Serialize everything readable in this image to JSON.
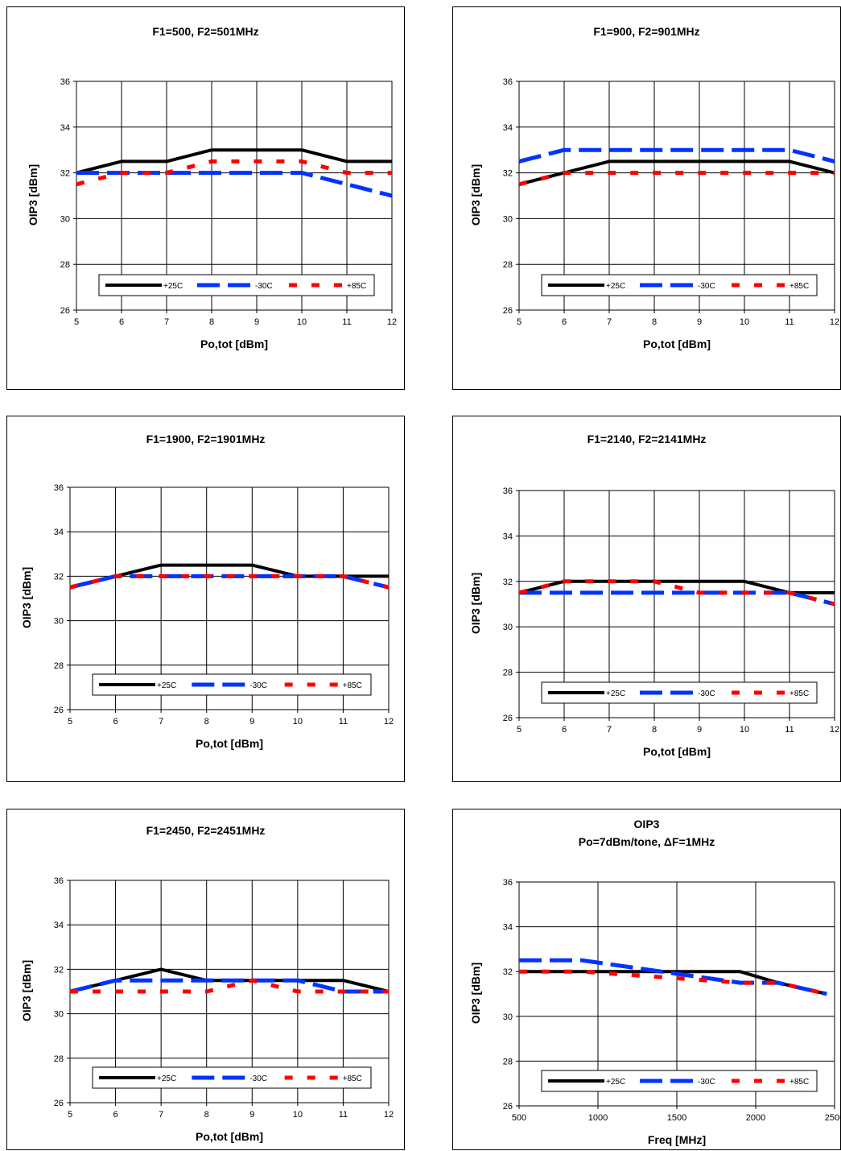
{
  "colors": {
    "plus25": "#000000",
    "minus30": "#0033ff",
    "plus85": "#ff0000",
    "grid": "#000000",
    "plot_bg": "#ffffff"
  },
  "chart_data": [
    {
      "type": "line",
      "title": "F1=500, F2=501MHz",
      "xlabel": "Po,tot [dBm]",
      "ylabel": "OIP3 [dBm]",
      "xlim": [
        5,
        12
      ],
      "ylim": [
        26,
        36
      ],
      "xticks": [
        5,
        6,
        7,
        8,
        9,
        10,
        11,
        12
      ],
      "yticks": [
        26,
        28,
        30,
        32,
        34,
        36
      ],
      "grid": true,
      "legend": "bottom",
      "series": [
        {
          "name": "+25C",
          "x": [
            5,
            6,
            7,
            8,
            9,
            10,
            11,
            12
          ],
          "y": [
            32,
            32.5,
            32.5,
            33,
            33,
            33,
            32.5,
            32.5
          ]
        },
        {
          "name": "-30C",
          "x": [
            5,
            6,
            7,
            8,
            9,
            10,
            11,
            12
          ],
          "y": [
            32,
            32,
            32,
            32,
            32,
            32,
            31.5,
            31
          ]
        },
        {
          "name": "+85C",
          "x": [
            5,
            6,
            7,
            8,
            9,
            10,
            11,
            12
          ],
          "y": [
            31.5,
            32,
            32,
            32.5,
            32.5,
            32.5,
            32,
            32
          ]
        }
      ]
    },
    {
      "type": "line",
      "title": "F1=900, F2=901MHz",
      "xlabel": "Po,tot [dBm]",
      "ylabel": "OIP3 [dBm]",
      "xlim": [
        5,
        12
      ],
      "ylim": [
        26,
        36
      ],
      "xticks": [
        5,
        6,
        7,
        8,
        9,
        10,
        11,
        12
      ],
      "yticks": [
        26,
        28,
        30,
        32,
        34,
        36
      ],
      "grid": true,
      "legend": "bottom",
      "series": [
        {
          "name": "+25C",
          "x": [
            5,
            6,
            7,
            8,
            9,
            10,
            11,
            12
          ],
          "y": [
            31.5,
            32,
            32.5,
            32.5,
            32.5,
            32.5,
            32.5,
            32
          ]
        },
        {
          "name": "-30C",
          "x": [
            5,
            6,
            7,
            8,
            9,
            10,
            11,
            12
          ],
          "y": [
            32.5,
            33,
            33,
            33,
            33,
            33,
            33,
            32.5
          ]
        },
        {
          "name": "+85C",
          "x": [
            5,
            6,
            7,
            8,
            9,
            10,
            11,
            12
          ],
          "y": [
            31.5,
            32,
            32,
            32,
            32,
            32,
            32,
            32
          ]
        }
      ]
    },
    {
      "type": "line",
      "title": "F1=1900, F2=1901MHz",
      "xlabel": "Po,tot [dBm]",
      "ylabel": "OIP3 [dBm]",
      "xlim": [
        5,
        12
      ],
      "ylim": [
        26,
        36
      ],
      "xticks": [
        5,
        6,
        7,
        8,
        9,
        10,
        11,
        12
      ],
      "yticks": [
        26,
        28,
        30,
        32,
        34,
        36
      ],
      "grid": true,
      "legend": "bottom",
      "series": [
        {
          "name": "+25C",
          "x": [
            5,
            6,
            7,
            8,
            9,
            10,
            11,
            12
          ],
          "y": [
            31.5,
            32,
            32.5,
            32.5,
            32.5,
            32,
            32,
            32
          ]
        },
        {
          "name": "-30C",
          "x": [
            5,
            6,
            7,
            8,
            9,
            10,
            11,
            12
          ],
          "y": [
            31.5,
            32,
            32,
            32,
            32,
            32,
            32,
            31.5
          ]
        },
        {
          "name": "+85C",
          "x": [
            5,
            6,
            7,
            8,
            9,
            10,
            11,
            12
          ],
          "y": [
            31.5,
            32,
            32,
            32,
            32,
            32,
            32,
            31.5
          ]
        }
      ]
    },
    {
      "type": "line",
      "title": "F1=2140, F2=2141MHz",
      "xlabel": "Po,tot [dBm]",
      "ylabel": "OIP3 [dBm]",
      "xlim": [
        5,
        12
      ],
      "ylim": [
        26,
        36
      ],
      "xticks": [
        5,
        6,
        7,
        8,
        9,
        10,
        11,
        12
      ],
      "yticks": [
        26,
        28,
        30,
        32,
        34,
        36
      ],
      "grid": true,
      "legend": "bottom",
      "series": [
        {
          "name": "+25C",
          "x": [
            5,
            6,
            7,
            8,
            9,
            10,
            11,
            12
          ],
          "y": [
            31.5,
            32,
            32,
            32,
            32,
            32,
            31.5,
            31.5
          ]
        },
        {
          "name": "-30C",
          "x": [
            5,
            6,
            7,
            8,
            9,
            10,
            11,
            12
          ],
          "y": [
            31.5,
            31.5,
            31.5,
            31.5,
            31.5,
            31.5,
            31.5,
            31
          ]
        },
        {
          "name": "+85C",
          "x": [
            5,
            6,
            7,
            8,
            9,
            10,
            11,
            12
          ],
          "y": [
            31.5,
            32,
            32,
            32,
            31.5,
            31.5,
            31.5,
            31
          ]
        }
      ]
    },
    {
      "type": "line",
      "title": "F1=2450, F2=2451MHz",
      "xlabel": "Po,tot [dBm]",
      "ylabel": "OIP3 [dBm]",
      "xlim": [
        5,
        12
      ],
      "ylim": [
        26,
        36
      ],
      "xticks": [
        5,
        6,
        7,
        8,
        9,
        10,
        11,
        12
      ],
      "yticks": [
        26,
        28,
        30,
        32,
        34,
        36
      ],
      "grid": true,
      "legend": "bottom",
      "series": [
        {
          "name": "+25C",
          "x": [
            5,
            6,
            7,
            8,
            9,
            10,
            11,
            12
          ],
          "y": [
            31,
            31.5,
            32,
            31.5,
            31.5,
            31.5,
            31.5,
            31
          ]
        },
        {
          "name": "-30C",
          "x": [
            5,
            6,
            7,
            8,
            9,
            10,
            11,
            12
          ],
          "y": [
            31,
            31.5,
            31.5,
            31.5,
            31.5,
            31.5,
            31,
            31
          ]
        },
        {
          "name": "+85C",
          "x": [
            5,
            6,
            7,
            8,
            9,
            10,
            11,
            12
          ],
          "y": [
            31,
            31,
            31,
            31,
            31.5,
            31,
            31,
            31
          ]
        }
      ]
    },
    {
      "type": "line",
      "title": "OIP3",
      "subtitle": "Po=7dBm/tone, ΔF=1MHz",
      "xlabel": "Freq [MHz]",
      "ylabel": "OIP3 [dBm]",
      "xlim": [
        500,
        2500
      ],
      "ylim": [
        26,
        36
      ],
      "xticks": [
        500,
        1000,
        1500,
        2000,
        2500
      ],
      "yticks": [
        26,
        28,
        30,
        32,
        34,
        36
      ],
      "grid": true,
      "legend": "bottom",
      "series": [
        {
          "name": "+25C",
          "x": [
            500,
            900,
            1900,
            2140,
            2450
          ],
          "y": [
            32,
            32,
            32,
            31.5,
            31
          ]
        },
        {
          "name": "-30C",
          "x": [
            500,
            900,
            1900,
            2140,
            2450
          ],
          "y": [
            32.5,
            32.5,
            31.5,
            31.5,
            31
          ]
        },
        {
          "name": "+85C",
          "x": [
            500,
            900,
            1900,
            2140,
            2450
          ],
          "y": [
            32,
            32,
            31.5,
            31.5,
            31
          ]
        }
      ]
    }
  ]
}
